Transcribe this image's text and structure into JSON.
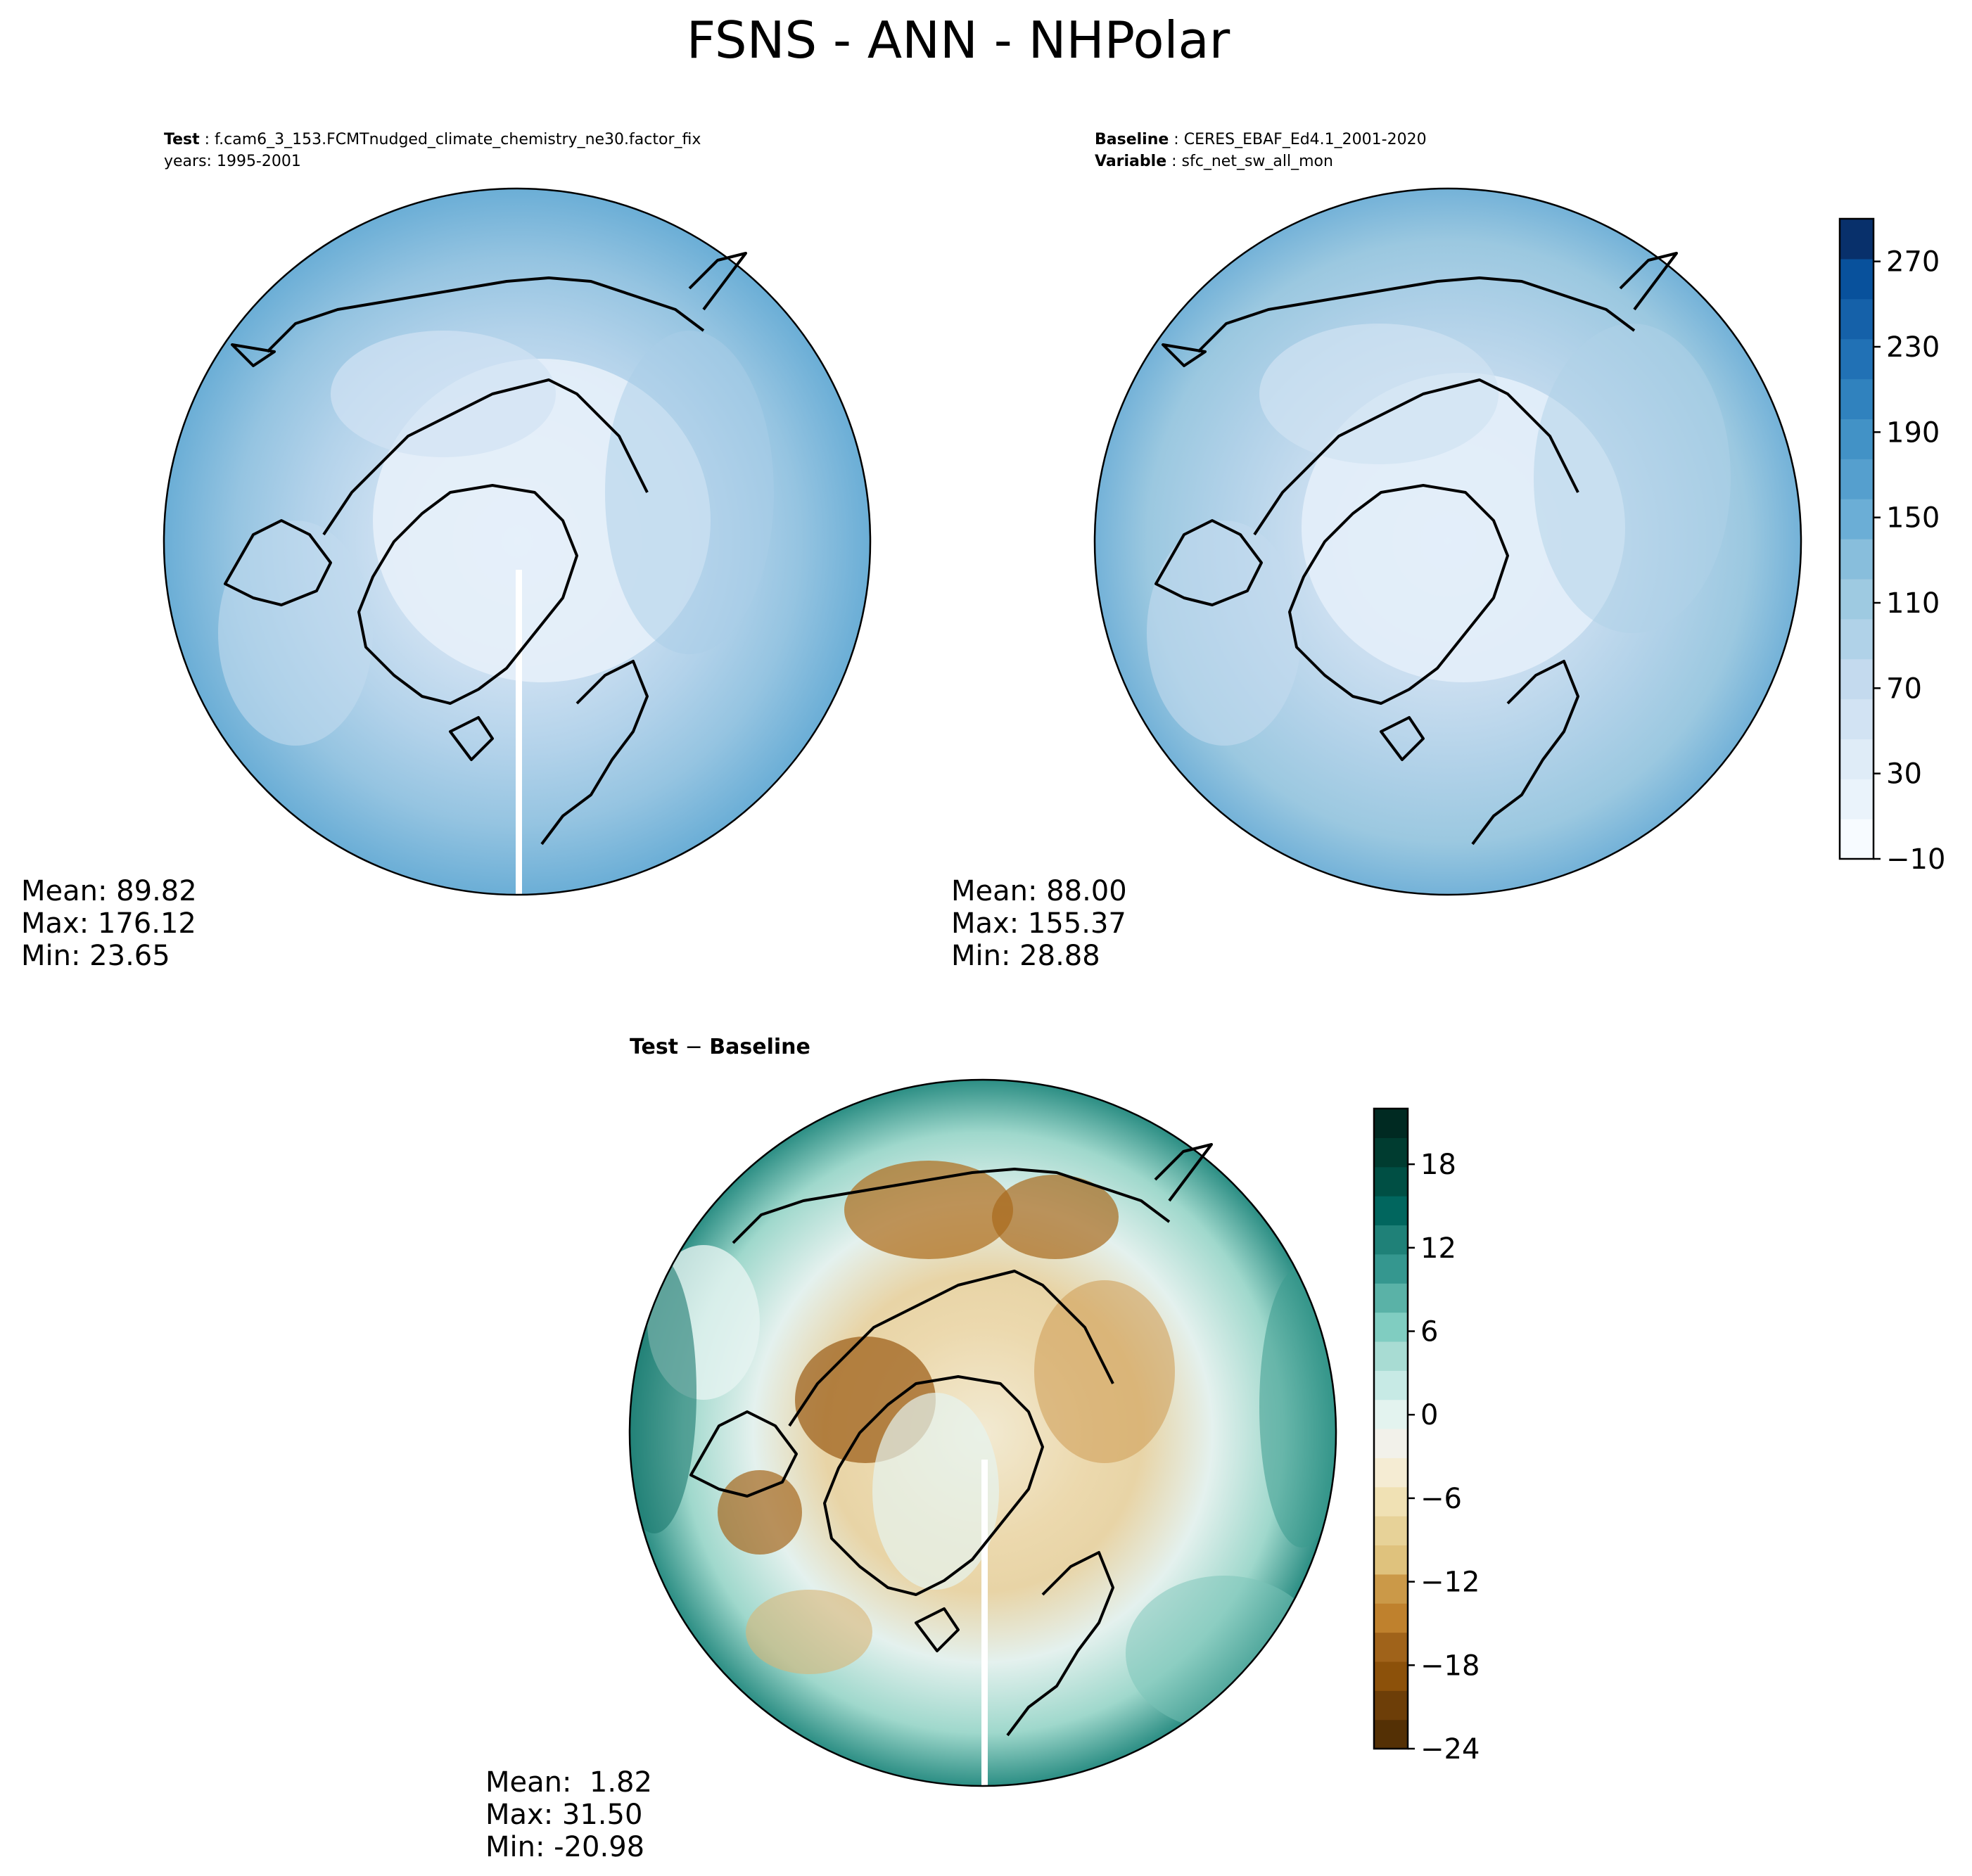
{
  "figure_title": "FSNS - ANN - NHPolar",
  "panels": {
    "test": {
      "line1_label": "Test",
      "line1_value": "f.cam6_3_153.FCMTnudged_climate_chemistry_ne30.factor_fix",
      "line2": "years: 1995-2001",
      "stats": [
        "Mean: 89.82",
        "Max: 176.12",
        "Min: 23.65"
      ]
    },
    "baseline": {
      "line1_label": "Baseline",
      "line1_value": "CERES_EBAF_Ed4.1_2001-2020",
      "line2_label": "Variable",
      "line2_value": "sfc_net_sw_all_mon",
      "stats": [
        "Mean: 88.00",
        "Max: 155.37",
        "Min: 28.88"
      ]
    },
    "diff": {
      "title_a": "Test",
      "title_sep": " − ",
      "title_b": "Baseline",
      "stats": [
        "Mean:  1.82",
        "Max: 31.50",
        "Min: -20.98"
      ]
    }
  },
  "chart_data": [
    {
      "type": "heatmap",
      "projection": "north-polar-stereographic",
      "panel": "test",
      "field": "FSNS",
      "season": "ANN",
      "region": "NHPolar",
      "mean": 89.82,
      "max": 176.12,
      "min": 23.65,
      "colorbar": "shared with baseline"
    },
    {
      "type": "heatmap",
      "projection": "north-polar-stereographic",
      "panel": "baseline",
      "field": "FSNS",
      "mean": 88.0,
      "max": 155.37,
      "min": 28.88,
      "colorbar": {
        "range": [
          -10,
          290
        ],
        "levels": [
          -10,
          10,
          30,
          50,
          70,
          90,
          110,
          130,
          150,
          170,
          190,
          210,
          230,
          250,
          270,
          290
        ],
        "tick_labels": [
          "−10",
          "30",
          "70",
          "110",
          "150",
          "190",
          "230",
          "270"
        ],
        "colors": [
          "#f7fbff",
          "#eaf3fb",
          "#dfecf7",
          "#d2e3f3",
          "#c4daee",
          "#b0d2e8",
          "#9ecae1",
          "#88bedc",
          "#6baed6",
          "#559fce",
          "#4292c6",
          "#3082be",
          "#2171b5",
          "#1561a9",
          "#08519c",
          "#08306b"
        ]
      }
    },
    {
      "type": "heatmap",
      "projection": "north-polar-stereographic",
      "panel": "diff",
      "field": "FSNS difference",
      "mean": 1.82,
      "max": 31.5,
      "min": -20.98,
      "colorbar": {
        "range": [
          -24,
          22
        ],
        "tick_labels": [
          "−24",
          "−18",
          "−12",
          "−6",
          "0",
          "6",
          "12",
          "18"
        ],
        "tick_values": [
          -24,
          -18,
          -12,
          -6,
          0,
          6,
          12,
          18
        ],
        "colors": [
          "#543005",
          "#6d3e08",
          "#8c510a",
          "#a0631a",
          "#bf812d",
          "#cb9948",
          "#dfc27d",
          "#e7d298",
          "#f0e1b4",
          "#f5ecd3",
          "#f2f1ea",
          "#e3f3ef",
          "#c7eae5",
          "#a8dcd3",
          "#80cdc1",
          "#5ab2a7",
          "#35978f",
          "#1f8178",
          "#01665e",
          "#004f44",
          "#003c30",
          "#002a22"
        ]
      }
    }
  ]
}
